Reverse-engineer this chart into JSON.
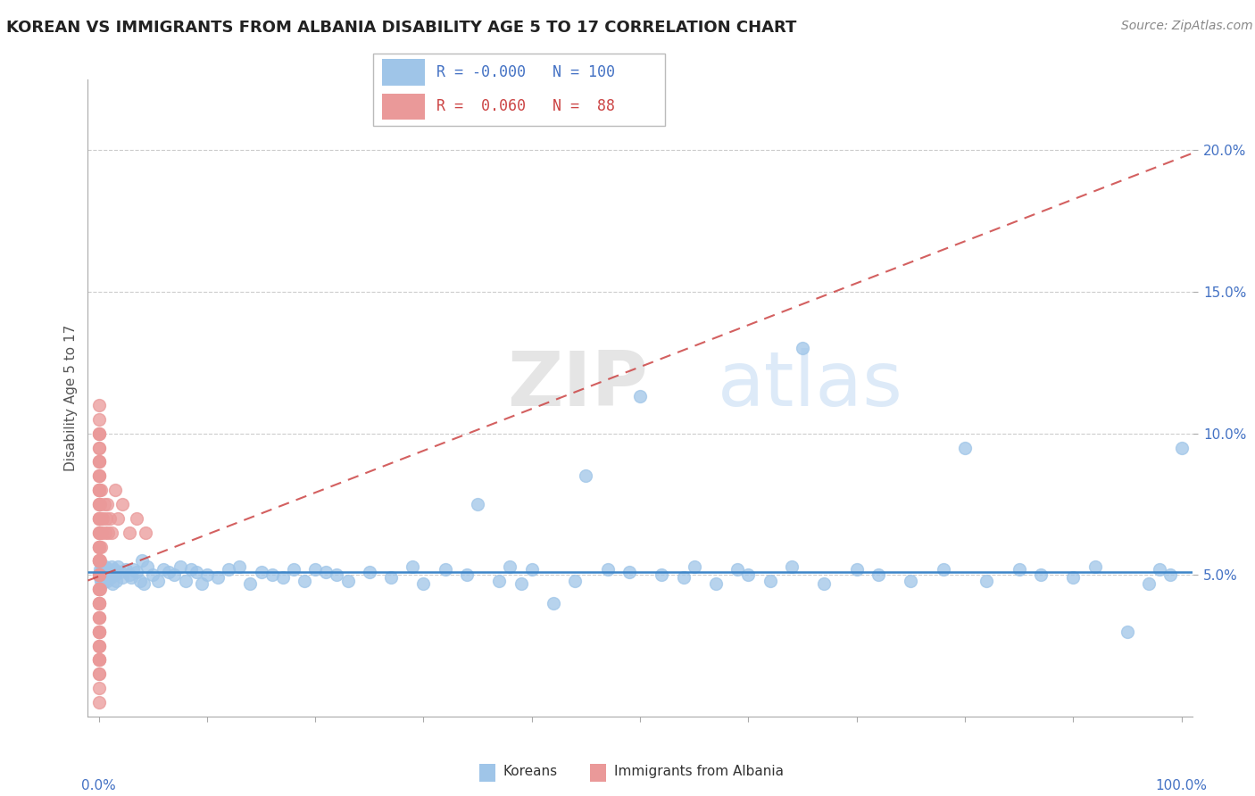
{
  "title": "KOREAN VS IMMIGRANTS FROM ALBANIA DISABILITY AGE 5 TO 17 CORRELATION CHART",
  "source": "Source: ZipAtlas.com",
  "ylabel": "Disability Age 5 to 17",
  "yticks": [
    0.05,
    0.1,
    0.15,
    0.2
  ],
  "ytick_labels": [
    "5.0%",
    "10.0%",
    "15.0%",
    "20.0%"
  ],
  "xlim": [
    -0.01,
    1.01
  ],
  "ylim": [
    0.0,
    0.225
  ],
  "legend_r_korean": "-0.000",
  "legend_n_korean": "100",
  "legend_r_albania": "0.060",
  "legend_n_albania": "88",
  "color_korean": "#9fc5e8",
  "color_albania": "#ea9999",
  "color_korean_line": "#3d85c8",
  "color_albania_line": "#cc4444",
  "watermark_zip": "ZIP",
  "watermark_atlas": "atlas",
  "korean_x": [
    0.001,
    0.001,
    0.001,
    0.002,
    0.002,
    0.003,
    0.003,
    0.004,
    0.004,
    0.005,
    0.005,
    0.006,
    0.007,
    0.008,
    0.009,
    0.01,
    0.011,
    0.012,
    0.013,
    0.014,
    0.015,
    0.016,
    0.018,
    0.02,
    0.022,
    0.025,
    0.028,
    0.03,
    0.032,
    0.035,
    0.038,
    0.04,
    0.042,
    0.045,
    0.05,
    0.055,
    0.06,
    0.065,
    0.07,
    0.075,
    0.08,
    0.085,
    0.09,
    0.095,
    0.1,
    0.11,
    0.12,
    0.13,
    0.14,
    0.15,
    0.16,
    0.17,
    0.18,
    0.19,
    0.2,
    0.21,
    0.22,
    0.23,
    0.25,
    0.27,
    0.29,
    0.3,
    0.32,
    0.34,
    0.35,
    0.37,
    0.38,
    0.39,
    0.4,
    0.42,
    0.44,
    0.45,
    0.47,
    0.49,
    0.5,
    0.52,
    0.54,
    0.55,
    0.57,
    0.59,
    0.6,
    0.62,
    0.64,
    0.65,
    0.67,
    0.7,
    0.72,
    0.75,
    0.78,
    0.8,
    0.82,
    0.85,
    0.87,
    0.9,
    0.92,
    0.95,
    0.97,
    0.98,
    0.99,
    1.0
  ],
  "korean_y": [
    0.05,
    0.052,
    0.049,
    0.051,
    0.048,
    0.053,
    0.047,
    0.052,
    0.049,
    0.051,
    0.048,
    0.053,
    0.05,
    0.048,
    0.052,
    0.051,
    0.049,
    0.053,
    0.047,
    0.052,
    0.05,
    0.048,
    0.053,
    0.051,
    0.049,
    0.052,
    0.05,
    0.049,
    0.052,
    0.051,
    0.048,
    0.055,
    0.047,
    0.053,
    0.05,
    0.048,
    0.052,
    0.051,
    0.05,
    0.053,
    0.048,
    0.052,
    0.051,
    0.047,
    0.05,
    0.049,
    0.052,
    0.053,
    0.047,
    0.051,
    0.05,
    0.049,
    0.052,
    0.048,
    0.052,
    0.051,
    0.05,
    0.048,
    0.051,
    0.049,
    0.053,
    0.047,
    0.052,
    0.05,
    0.075,
    0.048,
    0.053,
    0.047,
    0.052,
    0.04,
    0.048,
    0.085,
    0.052,
    0.051,
    0.113,
    0.05,
    0.049,
    0.053,
    0.047,
    0.052,
    0.05,
    0.048,
    0.053,
    0.13,
    0.047,
    0.052,
    0.05,
    0.048,
    0.052,
    0.095,
    0.048,
    0.052,
    0.05,
    0.049,
    0.053,
    0.03,
    0.047,
    0.052,
    0.05,
    0.095
  ],
  "albania_x": [
    0.0,
    0.0,
    0.0,
    0.0,
    0.0,
    0.0,
    0.0,
    0.0,
    0.0,
    0.0,
    0.0,
    0.0,
    0.0,
    0.0,
    0.0,
    0.0,
    0.0,
    0.0,
    0.0,
    0.0,
    0.0,
    0.0,
    0.0,
    0.0,
    0.0,
    0.0,
    0.0,
    0.0,
    0.0,
    0.0,
    0.0,
    0.0,
    0.0,
    0.0,
    0.0,
    0.0,
    0.0,
    0.0,
    0.0,
    0.0,
    0.0,
    0.0,
    0.0,
    0.0,
    0.0,
    0.0,
    0.0,
    0.0,
    0.0,
    0.0,
    0.0,
    0.0,
    0.0,
    0.0,
    0.0,
    0.0,
    0.0,
    0.0,
    0.0,
    0.0,
    0.0,
    0.0,
    0.0,
    0.0,
    0.0,
    0.0,
    0.001,
    0.001,
    0.001,
    0.001,
    0.002,
    0.002,
    0.002,
    0.003,
    0.004,
    0.005,
    0.006,
    0.007,
    0.008,
    0.009,
    0.01,
    0.012,
    0.015,
    0.018,
    0.022,
    0.028,
    0.035,
    0.043
  ],
  "albania_y": [
    0.05,
    0.1,
    0.08,
    0.09,
    0.07,
    0.11,
    0.06,
    0.055,
    0.045,
    0.04,
    0.035,
    0.03,
    0.025,
    0.02,
    0.065,
    0.075,
    0.085,
    0.095,
    0.055,
    0.045,
    0.035,
    0.025,
    0.015,
    0.07,
    0.08,
    0.09,
    0.1,
    0.06,
    0.05,
    0.04,
    0.03,
    0.02,
    0.065,
    0.075,
    0.085,
    0.055,
    0.045,
    0.01,
    0.02,
    0.03,
    0.04,
    0.06,
    0.07,
    0.08,
    0.09,
    0.1,
    0.05,
    0.055,
    0.045,
    0.035,
    0.025,
    0.015,
    0.005,
    0.06,
    0.07,
    0.08,
    0.05,
    0.04,
    0.03,
    0.02,
    0.065,
    0.075,
    0.085,
    0.055,
    0.095,
    0.105,
    0.065,
    0.055,
    0.045,
    0.075,
    0.07,
    0.06,
    0.08,
    0.065,
    0.07,
    0.075,
    0.065,
    0.07,
    0.075,
    0.065,
    0.07,
    0.065,
    0.08,
    0.07,
    0.075,
    0.065,
    0.07,
    0.065
  ]
}
